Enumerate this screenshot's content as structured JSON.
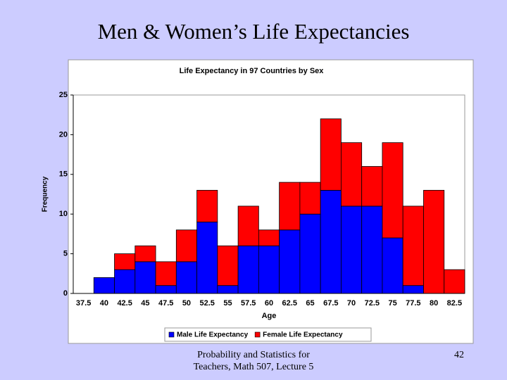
{
  "slide": {
    "title": "Men & Women’s Life Expectancies",
    "footer": [
      "Probability and Statistics for",
      "Teachers, Math 507, Lecture 5"
    ],
    "page_number": "42"
  },
  "chart_data": {
    "type": "bar",
    "stacked": true,
    "title": "Life Expectancy in 97 Countries by Sex",
    "x_label": "Age",
    "y_label": "Frequency",
    "categories": [
      "37.5",
      "40",
      "42.5",
      "45",
      "47.5",
      "50",
      "52.5",
      "55",
      "57.5",
      "60",
      "62.5",
      "65",
      "67.5",
      "70",
      "72.5",
      "75",
      "77.5",
      "80",
      "82.5"
    ],
    "series": [
      {
        "name": "Male Life Expectancy",
        "color": "#0000ff",
        "values": [
          0,
          2,
          3,
          4,
          1,
          4,
          9,
          1,
          6,
          6,
          8,
          10,
          13,
          11,
          11,
          7,
          1,
          0,
          0
        ]
      },
      {
        "name": "Female Life Expectancy",
        "color": "#ff0000",
        "values": [
          0,
          0,
          2,
          2,
          3,
          4,
          4,
          5,
          5,
          2,
          6,
          4,
          9,
          8,
          5,
          12,
          10,
          13,
          3
        ]
      }
    ],
    "ylim": [
      0,
      25
    ],
    "yticks": [
      0,
      5,
      10,
      15,
      20,
      25
    ],
    "grid": false,
    "legend": "bottom"
  }
}
